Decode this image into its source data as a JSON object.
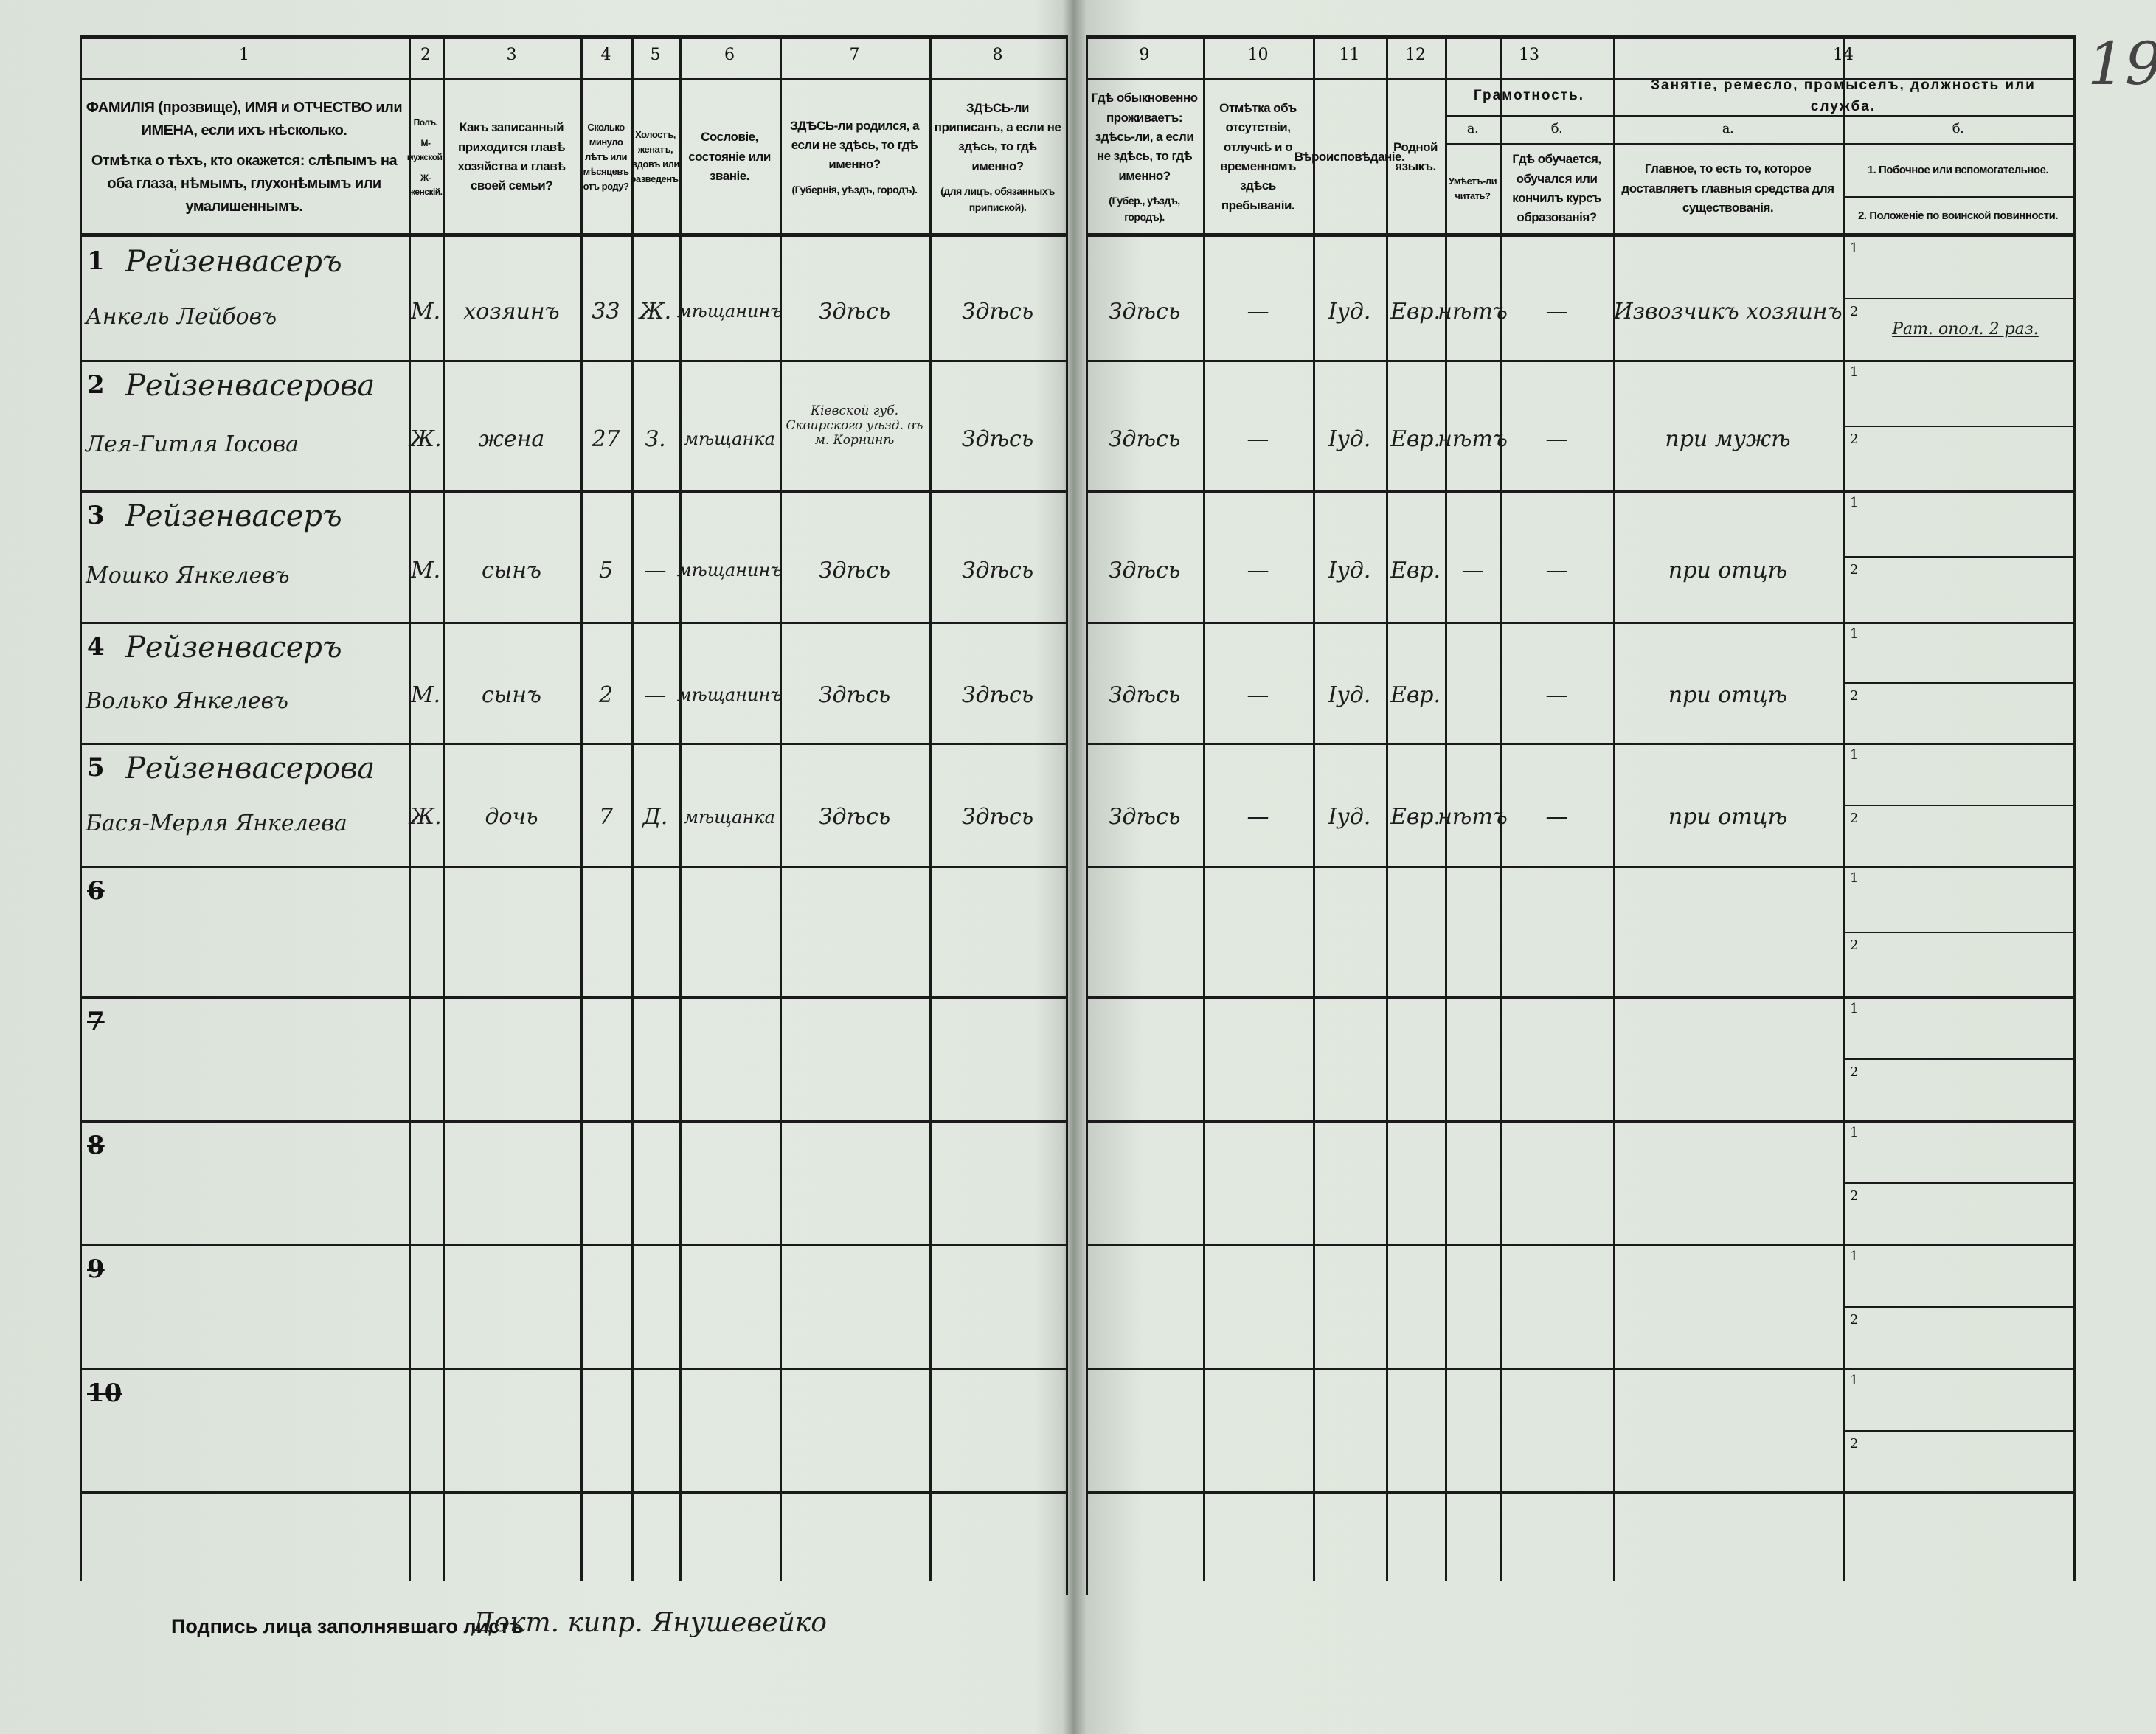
{
  "page_number": "19",
  "header": {
    "columns": [
      {
        "num": "1",
        "text": "ФАМИЛІЯ (прозвище), ИМЯ и ОТЧЕСТВО или ИМЕНА, если ихъ нѣсколько.",
        "text2": "Отмѣтка о тѣхъ, кто окажется: слѣпымъ на оба глаза, нѣмымъ, глухонѣмымъ или умалишеннымъ."
      },
      {
        "num": "2",
        "text": "Полъ.",
        "text2": "М-мужской.",
        "text3": "Ж-женскій."
      },
      {
        "num": "3",
        "text": "Какъ записанный приходится главѣ хозяйства и главѣ своей семьи?"
      },
      {
        "num": "4",
        "text": "Сколько минуло лѣтъ или мѣсяцевъ отъ роду?"
      },
      {
        "num": "5",
        "text": "Холостъ, женатъ, вдовъ или разведенъ."
      },
      {
        "num": "6",
        "text": "Сословіе, состояніе или званіе."
      },
      {
        "num": "7",
        "text": "ЗДѢСЬ-ли родился, а если не здѣсь, то гдѣ именно?",
        "text2": "(Губернія, уѣздъ, городъ)."
      },
      {
        "num": "8",
        "text": "ЗДѢСЬ-ли приписанъ, а если не здѣсь, то гдѣ именно?",
        "text2": "(для лицъ, обязанныхъ припиской)."
      },
      {
        "num": "9",
        "text": "Гдѣ обыкновенно проживаетъ: здѣсь-ли, а если не здѣсь, то гдѣ именно?",
        "text2": "(Губер., уѣздъ, городъ)."
      },
      {
        "num": "10",
        "text": "Отмѣтка объ отсутствіи, отлучкѣ и о временномъ здѣсь пребываніи."
      },
      {
        "num": "11",
        "text": "Вѣроисповѣданіе."
      },
      {
        "num": "12",
        "text": "Родной языкъ."
      },
      {
        "num": "13",
        "group": "Грамотность.",
        "sub_a": "а.",
        "sub_b": "б.",
        "text_a": "Умѣетъ-ли читать?",
        "text_b": "Гдѣ обучается, обучался или кончилъ курсъ образованія?"
      },
      {
        "num": "14",
        "group": "Занятіе, ремесло, промыселъ, должность или служба.",
        "sub_a": "а.",
        "sub_b": "б.",
        "text_a": "Главное, то есть то, которое доставляетъ главныя средства для существованія.",
        "text_b1": "1. Побочное или вспомогательное.",
        "text_b2": "2. Положеніе по воинской повинности."
      }
    ]
  },
  "rows": [
    {
      "n": "1",
      "surname": "Рейзенвасеръ",
      "given": "Анкель Лейбовъ",
      "sex": "М.",
      "relation": "хозяинъ",
      "age": "33",
      "marital": "Ж.",
      "estate": "мѣщанинъ",
      "born": "Здѣсь",
      "registered": "Здѣсь",
      "residence": "Здѣсь",
      "absence": "—",
      "religion": "Іуд.",
      "language": "Евр.",
      "literate": "нѣтъ",
      "school": "—",
      "occupation": "Извозчикъ хозяинъ",
      "secondary": "",
      "military": "Рат. опол. 2 раз."
    },
    {
      "n": "2",
      "surname": "Рейзенвасерова",
      "given": "Лея-Гитля Іосова",
      "sex": "Ж.",
      "relation": "жена",
      "age": "27",
      "marital": "З.",
      "estate": "мѣщанка",
      "born": "Кіевской губ. Сквирского уѣзд. въ м. Корнинѣ",
      "registered": "Здѣсь",
      "residence": "Здѣсь",
      "absence": "—",
      "religion": "Іуд.",
      "language": "Евр.",
      "literate": "нѣтъ",
      "school": "—",
      "occupation": "при мужѣ",
      "secondary": "",
      "military": ""
    },
    {
      "n": "3",
      "surname": "Рейзенвасеръ",
      "given": "Мошко Янкелевъ",
      "sex": "М.",
      "relation": "сынъ",
      "age": "5",
      "marital": "—",
      "estate": "мѣщанинъ",
      "born": "Здѣсь",
      "registered": "Здѣсь",
      "residence": "Здѣсь",
      "absence": "—",
      "religion": "Іуд.",
      "language": "Евр.",
      "literate": "—",
      "school": "—",
      "occupation": "при отцѣ",
      "secondary": "",
      "military": ""
    },
    {
      "n": "4",
      "surname": "Рейзенвасеръ",
      "given": "Волько Янкелевъ",
      "sex": "М.",
      "relation": "сынъ",
      "age": "2",
      "marital": "—",
      "estate": "мѣщанинъ",
      "born": "Здѣсь",
      "registered": "Здѣсь",
      "residence": "Здѣсь",
      "absence": "—",
      "religion": "Іуд.",
      "language": "Евр.",
      "literate": "",
      "school": "—",
      "occupation": "при отцѣ",
      "secondary": "",
      "military": ""
    },
    {
      "n": "5",
      "surname": "Рейзенвасерова",
      "given": "Бася-Мерля Янкелева",
      "sex": "Ж.",
      "relation": "дочь",
      "age": "7",
      "marital": "Д.",
      "estate": "мѣщанка",
      "born": "Здѣсь",
      "registered": "Здѣсь",
      "residence": "Здѣсь",
      "absence": "—",
      "religion": "Іуд.",
      "language": "Евр.",
      "literate": "нѣтъ",
      "school": "—",
      "occupation": "при отцѣ",
      "secondary": "",
      "military": ""
    },
    {
      "n": "6"
    },
    {
      "n": "7"
    },
    {
      "n": "8"
    },
    {
      "n": "9"
    },
    {
      "n": "10"
    }
  ],
  "sub_labels": {
    "one": "1",
    "two": "2"
  },
  "footer": {
    "label": "Подпись лица заполнявшаго листъ",
    "signature": "Докт. кипр. Янушевейко"
  }
}
